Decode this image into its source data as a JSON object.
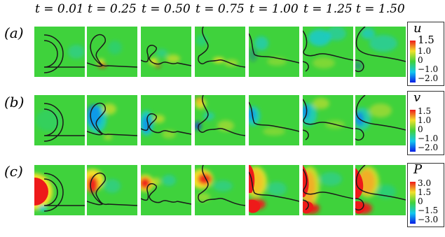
{
  "time_labels": [
    "t = 0.01",
    "t = 0.25",
    "t = 0.50",
    "t = 0.75",
    "t = 1.00",
    "t = 1.25",
    "t = 1.50"
  ],
  "rows": [
    {
      "label": "(a)",
      "variable": "u",
      "ticks": [
        "1.5",
        "1.0",
        "0",
        "−1.0",
        "−2.0"
      ]
    },
    {
      "label": "(b)",
      "variable": "v",
      "ticks": [
        "1.5",
        "1.0",
        "0",
        "−1.0",
        "−2.0"
      ]
    },
    {
      "label": "(c)",
      "variable": "P",
      "ticks": [
        "3.0",
        "1.5",
        "0",
        "−1.5",
        "−3.0"
      ]
    }
  ],
  "colors": {
    "background_green": "#3fd23c",
    "interface": "#1a1a1a",
    "colormap": [
      "#0a1ee6",
      "#12c8ef",
      "#3fd23c",
      "#f2e12a",
      "#ee1a1a"
    ]
  }
}
